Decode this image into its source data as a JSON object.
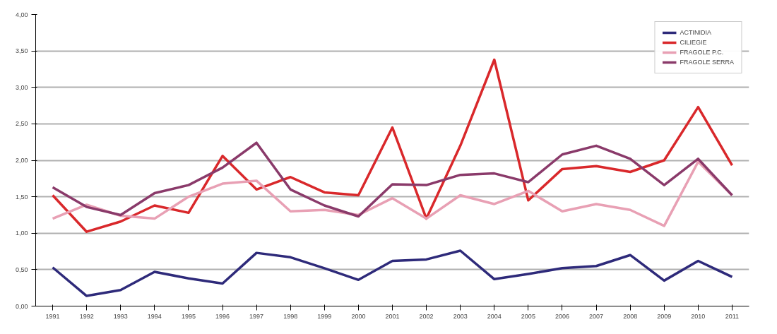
{
  "chart_data": {
    "type": "line",
    "categories": [
      "1991",
      "1992",
      "1993",
      "1994",
      "1995",
      "1996",
      "1997",
      "1998",
      "1999",
      "2000",
      "2001",
      "2002",
      "2003",
      "2004",
      "2005",
      "2006",
      "2007",
      "2008",
      "2009",
      "2010",
      "2011"
    ],
    "series": [
      {
        "name": "ACTINIDIA",
        "color": "#2e2a7a",
        "values": [
          0.53,
          0.14,
          0.22,
          0.47,
          0.38,
          0.31,
          0.73,
          0.67,
          0.52,
          0.36,
          0.62,
          0.64,
          0.76,
          0.37,
          0.44,
          0.52,
          0.55,
          0.7,
          0.35,
          0.62,
          0.4
        ]
      },
      {
        "name": "CILIEGIE",
        "color": "#d9282b",
        "values": [
          1.52,
          1.02,
          1.16,
          1.38,
          1.28,
          2.06,
          1.6,
          1.77,
          1.56,
          1.52,
          2.45,
          1.2,
          2.2,
          3.38,
          1.45,
          1.88,
          1.92,
          1.84,
          2.0,
          2.73,
          1.93
        ]
      },
      {
        "name": "FRAGOLE P.C.",
        "color": "#e8a0b4",
        "values": [
          1.2,
          1.39,
          1.24,
          1.2,
          1.5,
          1.68,
          1.72,
          1.3,
          1.32,
          1.25,
          1.48,
          1.2,
          1.52,
          1.4,
          1.58,
          1.3,
          1.4,
          1.32,
          1.1,
          1.98,
          1.52
        ]
      },
      {
        "name": "FRAGOLE SERRA",
        "color": "#8a3a6a",
        "values": [
          1.63,
          1.36,
          1.25,
          1.55,
          1.66,
          1.9,
          2.24,
          1.6,
          1.38,
          1.23,
          1.67,
          1.66,
          1.8,
          1.82,
          1.7,
          2.08,
          2.2,
          2.02,
          1.66,
          2.02,
          1.52
        ]
      }
    ],
    "ylim": [
      0,
      4
    ],
    "yticks": [
      {
        "value": 0,
        "label": "0,00"
      },
      {
        "value": 0.5,
        "label": "0,50"
      },
      {
        "value": 1,
        "label": "1,00"
      },
      {
        "value": 1.5,
        "label": "1,50"
      },
      {
        "value": 2,
        "label": "2,00"
      },
      {
        "value": 2.5,
        "label": "2,50"
      },
      {
        "value": 3,
        "label": "3,00"
      },
      {
        "value": 3.5,
        "label": "3,50"
      },
      {
        "value": 4,
        "label": "4,00"
      }
    ],
    "grid": "y",
    "legend": "top right",
    "marker": "none",
    "line_style": "solid"
  }
}
